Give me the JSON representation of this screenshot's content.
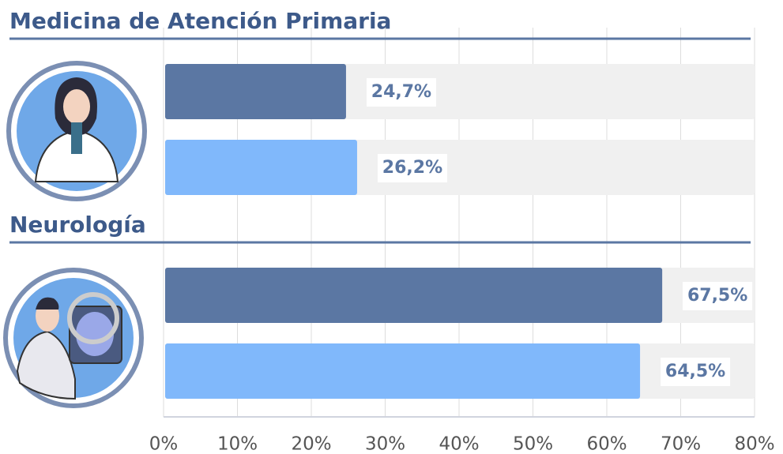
{
  "chart_data": {
    "type": "bar",
    "orientation": "horizontal",
    "categories": [
      "Medicina de Atención Primaria",
      "Neurología"
    ],
    "series": [
      {
        "color": "#5b77a3",
        "values": [
          24.7,
          67.5
        ],
        "value_labels": [
          "24,7%",
          "67,5%"
        ]
      },
      {
        "color": "#80b8fb",
        "values": [
          26.2,
          64.5
        ],
        "value_labels": [
          "26,2%",
          "64,5%"
        ]
      }
    ],
    "xlim": [
      0,
      80
    ],
    "xticks": [
      {
        "value": 0,
        "label": "0%"
      },
      {
        "value": 10,
        "label": "10%"
      },
      {
        "value": 20,
        "label": "20%"
      },
      {
        "value": 30,
        "label": "30%"
      },
      {
        "value": 40,
        "label": "40%"
      },
      {
        "value": 50,
        "label": "50%"
      },
      {
        "value": 60,
        "label": "60%"
      },
      {
        "value": 70,
        "label": "70%"
      },
      {
        "value": 80,
        "label": "80%"
      }
    ],
    "grid": true
  }
}
